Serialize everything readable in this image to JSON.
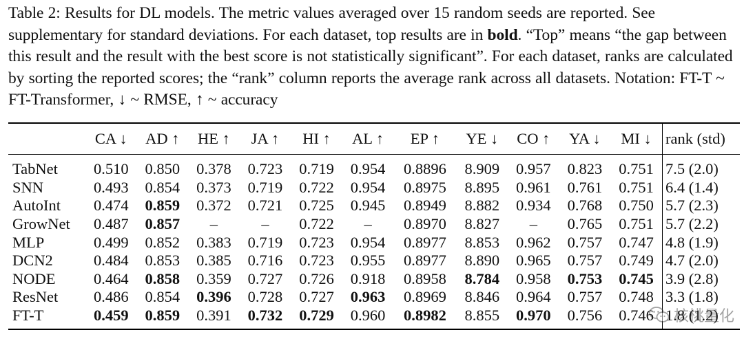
{
  "caption": {
    "label": "Table 2:",
    "text_before_bold": " Results for DL models. The metric values averaged over 15 random seeds are reported. See supplementary for standard deviations. For each dataset, top results are in ",
    "bold_word": "bold",
    "text_after_bold": ". “Top” means “the gap between this result and the result with the best score is not statistically significant”. For each dataset, ranks are calculated by sorting the reported scores; the “rank” column reports the average rank across all datasets. Notation: FT-T ~ FT-Transformer, ↓ ~ RMSE, ↑ ~ accuracy"
  },
  "table": {
    "model_header": "",
    "columns": [
      "CA ↓",
      "AD ↑",
      "HE ↑",
      "JA ↑",
      "HI ↑",
      "AL ↑",
      "EP ↑",
      "YE ↓",
      "CO ↑",
      "YA ↓",
      "MI ↓"
    ],
    "rank_header": "rank (std)",
    "rows": [
      {
        "model": "TabNet",
        "values": [
          "0.510",
          "0.850",
          "0.378",
          "0.723",
          "0.719",
          "0.954",
          "0.8896",
          "8.909",
          "0.957",
          "0.823",
          "0.751"
        ],
        "bold": [],
        "rank": "7.5 (2.0)"
      },
      {
        "model": "SNN",
        "values": [
          "0.493",
          "0.854",
          "0.373",
          "0.719",
          "0.722",
          "0.954",
          "0.8975",
          "8.895",
          "0.961",
          "0.761",
          "0.751"
        ],
        "bold": [],
        "rank": "6.4 (1.4)"
      },
      {
        "model": "AutoInt",
        "values": [
          "0.474",
          "0.859",
          "0.372",
          "0.721",
          "0.725",
          "0.945",
          "0.8949",
          "8.882",
          "0.934",
          "0.768",
          "0.750"
        ],
        "bold": [
          1
        ],
        "rank": "5.7 (2.3)"
      },
      {
        "model": "GrowNet",
        "values": [
          "0.487",
          "0.857",
          "–",
          "–",
          "0.722",
          "–",
          "0.8970",
          "8.827",
          "–",
          "0.765",
          "0.751"
        ],
        "bold": [
          1
        ],
        "rank": "5.7 (2.2)"
      },
      {
        "model": "MLP",
        "values": [
          "0.499",
          "0.852",
          "0.383",
          "0.719",
          "0.723",
          "0.954",
          "0.8977",
          "8.853",
          "0.962",
          "0.757",
          "0.747"
        ],
        "bold": [],
        "rank": "4.8 (1.9)"
      },
      {
        "model": "DCN2",
        "values": [
          "0.484",
          "0.853",
          "0.385",
          "0.716",
          "0.723",
          "0.955",
          "0.8977",
          "8.890",
          "0.965",
          "0.757",
          "0.749"
        ],
        "bold": [],
        "rank": "4.7 (2.0)"
      },
      {
        "model": "NODE",
        "values": [
          "0.464",
          "0.858",
          "0.359",
          "0.727",
          "0.726",
          "0.918",
          "0.8958",
          "8.784",
          "0.958",
          "0.753",
          "0.745"
        ],
        "bold": [
          1,
          7,
          9,
          10
        ],
        "rank": "3.9 (2.8)"
      },
      {
        "model": "ResNet",
        "values": [
          "0.486",
          "0.854",
          "0.396",
          "0.728",
          "0.727",
          "0.963",
          "0.8969",
          "8.846",
          "0.964",
          "0.757",
          "0.748"
        ],
        "bold": [
          2,
          5
        ],
        "rank": "3.3 (1.8)"
      },
      {
        "model": "FT-T",
        "values": [
          "0.459",
          "0.859",
          "0.391",
          "0.732",
          "0.729",
          "0.960",
          "0.8982",
          "8.855",
          "0.970",
          "0.756",
          "0.746"
        ],
        "bold": [
          0,
          1,
          3,
          4,
          6,
          8
        ],
        "rank": "1.8 (1.2)"
      }
    ]
  },
  "watermark": {
    "text": "核桃量化",
    "icon": "wechat-logo-icon"
  }
}
